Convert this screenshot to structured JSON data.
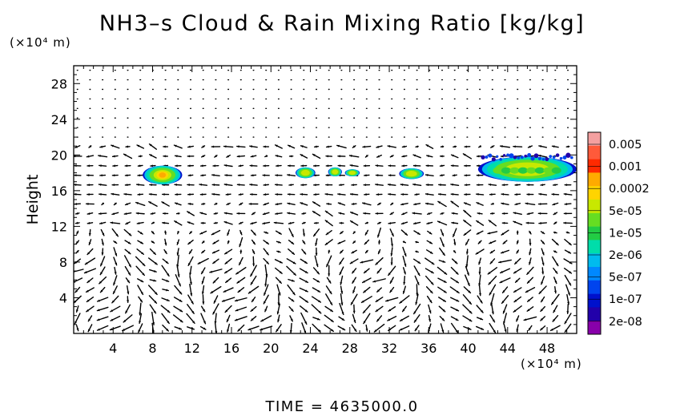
{
  "title": "NH3–s Cloud & Rain Mixing Ratio [kg/kg]",
  "y_unit": "(×10⁴ m)",
  "x_unit": "(×10⁴ m)",
  "time_label": "TIME  =  4635000.0",
  "chart_data": {
    "type": "heatmap",
    "title": "NH3–s Cloud & Rain Mixing Ratio [kg/kg]",
    "xlabel": "",
    "ylabel": "Height",
    "xlim": [
      0,
      51
    ],
    "ylim": [
      0,
      30
    ],
    "x_ticks": [
      4,
      8,
      12,
      16,
      20,
      24,
      28,
      32,
      36,
      40,
      44,
      48
    ],
    "y_ticks": [
      4,
      8,
      12,
      16,
      20,
      24,
      28
    ],
    "colorbar": {
      "labels": [
        "0.005",
        "0.001",
        "0.0002",
        "5e-05",
        "1e-05",
        "2e-06",
        "5e-07",
        "1e-07",
        "2e-08"
      ],
      "colors": [
        "#f4a0a0",
        "#ff5a3a",
        "#ff2a00",
        "#ffaa00",
        "#ffd400",
        "#c8e800",
        "#66dd22",
        "#22cc44",
        "#00ddaa",
        "#00bbee",
        "#0088ff",
        "#0044ee",
        "#0011cc",
        "#2200aa",
        "#8800aa"
      ]
    },
    "cloud_regions": [
      {
        "x_range": [
          7.0,
          11.0
        ],
        "y_range": [
          16.7,
          18.8
        ],
        "peak_level": "0.0002"
      },
      {
        "x_range": [
          22.5,
          24.5
        ],
        "y_range": [
          17.4,
          18.6
        ],
        "peak_level": "5e-05"
      },
      {
        "x_range": [
          25.8,
          27.2
        ],
        "y_range": [
          17.6,
          18.6
        ],
        "peak_level": "5e-05"
      },
      {
        "x_range": [
          27.5,
          29.0
        ],
        "y_range": [
          17.6,
          18.4
        ],
        "peak_level": "5e-05"
      },
      {
        "x_range": [
          33.0,
          35.5
        ],
        "y_range": [
          17.3,
          18.5
        ],
        "peak_level": "5e-05"
      },
      {
        "x_range": [
          41.0,
          51.0
        ],
        "y_range": [
          17.0,
          19.8
        ],
        "peak_level": "5e-05"
      }
    ]
  }
}
